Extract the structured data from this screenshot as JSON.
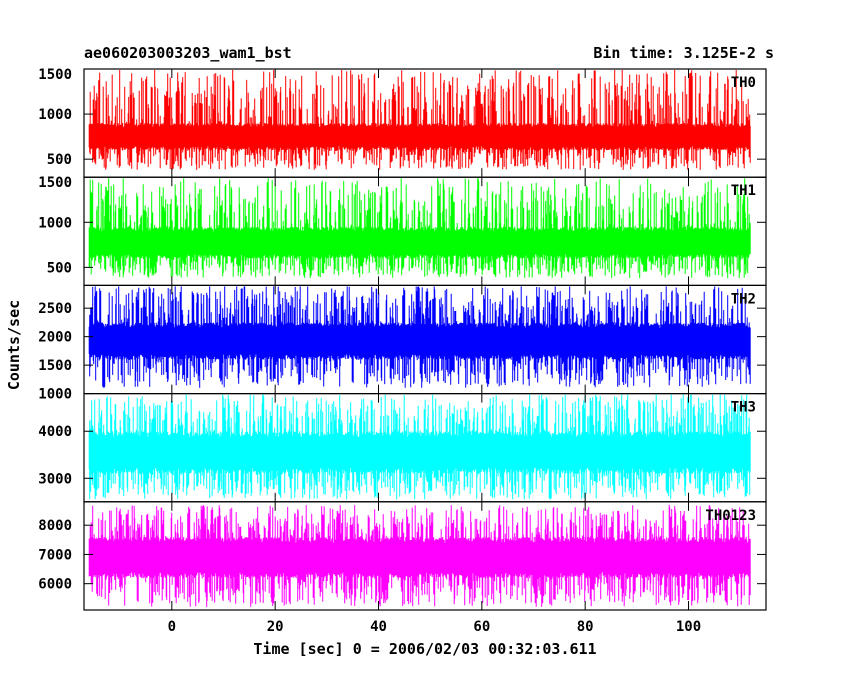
{
  "chart_data": {
    "type": "line",
    "title": "ae060203003203_wam1_bst",
    "subtitle": "Bin time: 3.125E-2 s",
    "xlabel": "Time [sec] 0 = 2006/02/03 00:32:03.611",
    "ylabel": "Counts/sec",
    "xlim": [
      -17,
      115
    ],
    "x_data_range": [
      -16,
      112
    ],
    "x_ticks": [
      0,
      20,
      40,
      60,
      80,
      100
    ],
    "grid": false,
    "panels": [
      {
        "name": "TH0",
        "color": "#ff0000",
        "ylim": [
          300,
          1500
        ],
        "y_ticks": [
          500,
          1000,
          1500
        ],
        "base_min": 600,
        "base_max": 900,
        "spike_min": 380,
        "spike_max": 1500
      },
      {
        "name": "TH1",
        "color": "#00ff00",
        "ylim": [
          300,
          1500
        ],
        "y_ticks": [
          500,
          1000,
          1500
        ],
        "base_min": 600,
        "base_max": 950,
        "spike_min": 380,
        "spike_max": 1500
      },
      {
        "name": "TH2",
        "color": "#0000ff",
        "ylim": [
          1000,
          2900
        ],
        "y_ticks": [
          1000,
          1500,
          2000,
          2500
        ],
        "base_min": 1600,
        "base_max": 2250,
        "spike_min": 1100,
        "spike_max": 2900
      },
      {
        "name": "TH3",
        "color": "#00ffff",
        "ylim": [
          2500,
          4800
        ],
        "y_ticks": [
          3000,
          4000
        ],
        "base_min": 3100,
        "base_max": 4000,
        "spike_min": 2550,
        "spike_max": 4800
      },
      {
        "name": "TH0123",
        "color": "#ff00ff",
        "ylim": [
          5100,
          8800
        ],
        "y_ticks": [
          6000,
          7000,
          8000
        ],
        "base_min": 6200,
        "base_max": 7600,
        "spike_min": 5200,
        "spike_max": 8700
      }
    ]
  }
}
